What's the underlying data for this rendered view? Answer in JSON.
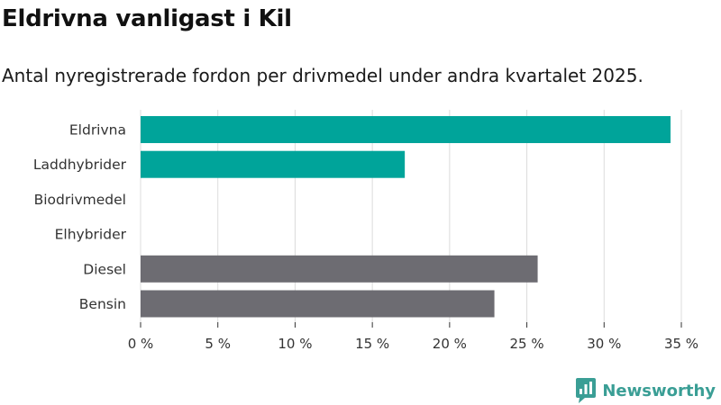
{
  "title": "Eldrivna vanligast i Kil",
  "subtitle": "Antal nyregistrerade fordon per drivmedel under andra kvartalet 2025.",
  "brand": {
    "name": "Newsworthy",
    "icon": "newsworthy-logo-icon",
    "color": "#3a9e95"
  },
  "chart_data": {
    "type": "bar",
    "orientation": "horizontal",
    "categories": [
      "Eldrivna",
      "Laddhybrider",
      "Biodrivmedel",
      "Elhybrider",
      "Diesel",
      "Bensin"
    ],
    "values": [
      34.3,
      17.1,
      0,
      0,
      25.7,
      22.9
    ],
    "colors": [
      "#00a49a",
      "#00a49a",
      "#00a49a",
      "#00a49a",
      "#6d6c72",
      "#6d6c72"
    ],
    "xlim": [
      0,
      35
    ],
    "xticks": [
      0,
      5,
      10,
      15,
      20,
      25,
      30,
      35
    ],
    "xtick_labels": [
      "0 %",
      "5 %",
      "10 %",
      "15 %",
      "20 %",
      "25 %",
      "30 %",
      "35 %"
    ],
    "grid": true
  }
}
